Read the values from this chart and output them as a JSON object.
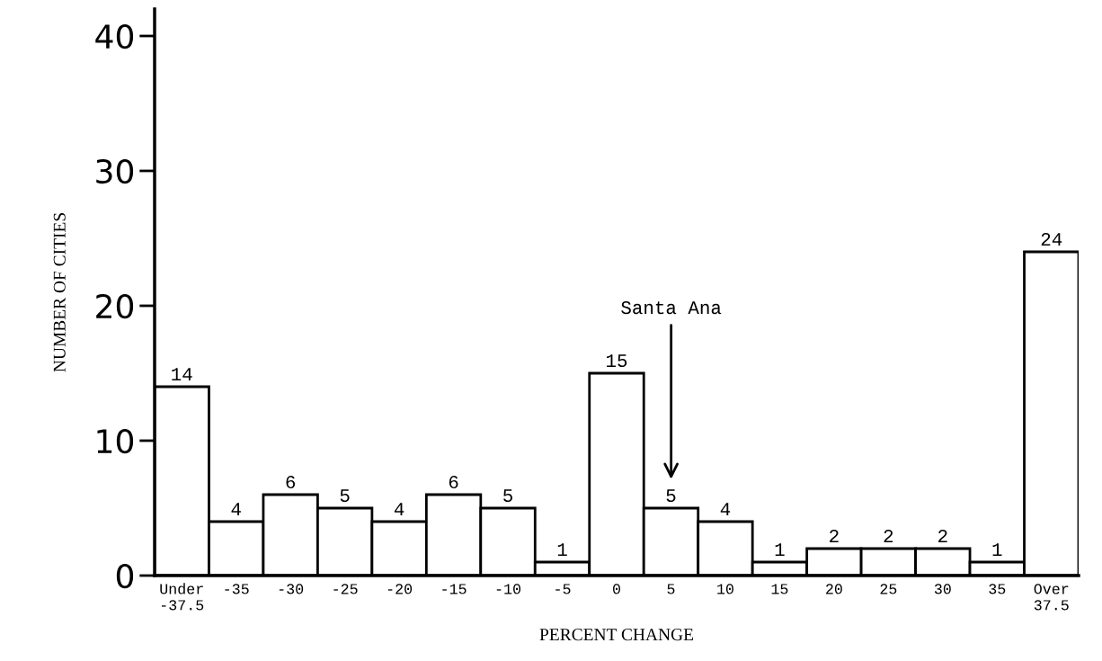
{
  "chart_data": {
    "type": "bar",
    "xlabel": "PERCENT CHANGE",
    "ylabel": "NUMBER OF CITIES",
    "categories": [
      "Under\n-37.5",
      "-35",
      "-30",
      "-25",
      "-20",
      "-15",
      "-10",
      "-5",
      "0",
      "5",
      "10",
      "15",
      "20",
      "25",
      "30",
      "35",
      "Over\n37.5"
    ],
    "values": [
      14,
      4,
      6,
      5,
      4,
      6,
      5,
      1,
      15,
      5,
      4,
      1,
      2,
      2,
      2,
      1,
      24
    ],
    "color": "#ffffff",
    "data_labels": true,
    "ylim": [
      0,
      42
    ],
    "yticks": [
      0,
      10,
      20,
      30,
      40
    ],
    "grid": false,
    "legend": false,
    "annotations": [
      "Santa Ana"
    ]
  }
}
